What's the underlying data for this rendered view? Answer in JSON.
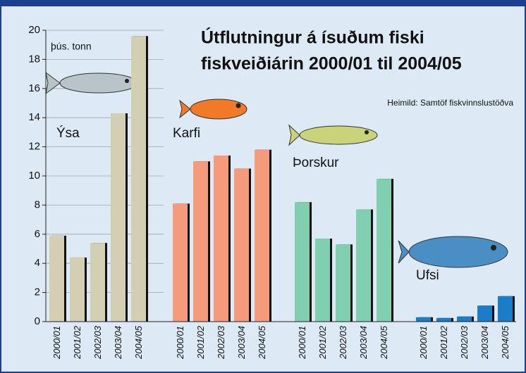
{
  "chart_data": {
    "type": "bar",
    "title": [
      "Útflutningur á ísuðum fiski",
      "fiskveiðiárin 2000/01 til 2004/05"
    ],
    "y_label": "þús. tonn",
    "source": "Heimild: Samtöf fiskvinnslustöðva",
    "categories": [
      "2000/01",
      "2001/02",
      "2002/03",
      "2003/04",
      "2004/05"
    ],
    "series": [
      {
        "name": "Ýsa",
        "color": "#d3cfb3",
        "values": [
          5.9,
          4.4,
          5.4,
          14.3,
          19.6
        ]
      },
      {
        "name": "Karfi",
        "color": "#f59a7a",
        "values": [
          8.1,
          11.0,
          11.4,
          10.5,
          11.8
        ]
      },
      {
        "name": "Þorskur",
        "color": "#80cfb0",
        "values": [
          8.2,
          5.7,
          5.3,
          7.7,
          9.8
        ]
      },
      {
        "name": "Ufsi",
        "color": "#1b7cc8",
        "values": [
          0.3,
          0.25,
          0.35,
          1.1,
          1.75
        ]
      }
    ],
    "ylim": [
      0,
      20
    ],
    "yticks": [
      0,
      2,
      4,
      6,
      8,
      10,
      12,
      14,
      16,
      18,
      20
    ],
    "grid": true
  }
}
